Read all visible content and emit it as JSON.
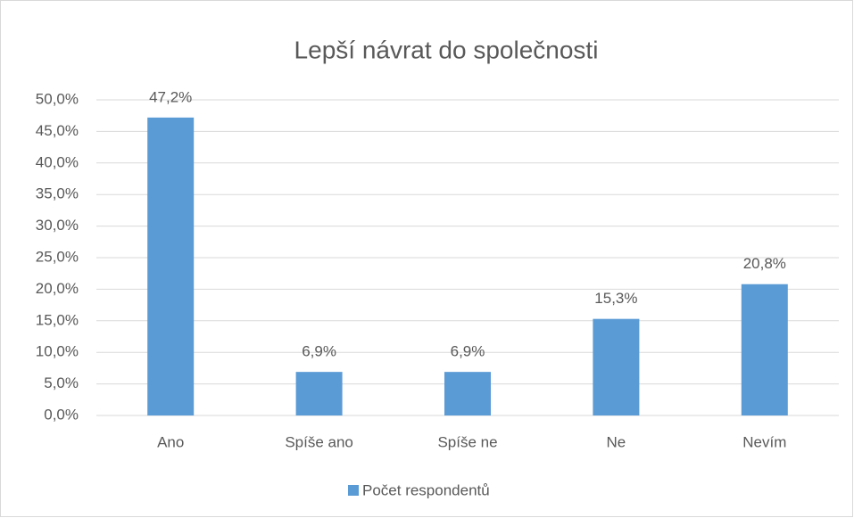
{
  "chart_data": {
    "type": "bar",
    "title": "Lepší návrat do společnosti",
    "categories": [
      "Ano",
      "Spíše ano",
      "Spíše ne",
      "Ne",
      "Nevím"
    ],
    "series": [
      {
        "name": "Počet respondentů",
        "color": "#5b9bd5",
        "values": [
          47.2,
          6.9,
          6.9,
          15.3,
          20.8
        ],
        "value_labels": [
          "47,2%",
          "6,9%",
          "6,9%",
          "15,3%",
          "20,8%"
        ]
      }
    ],
    "ylim": [
      0,
      50
    ],
    "yticks": [
      {
        "value": 0,
        "label": "0,0%"
      },
      {
        "value": 5,
        "label": "5,0%"
      },
      {
        "value": 10,
        "label": "10,0%"
      },
      {
        "value": 15,
        "label": "15,0%"
      },
      {
        "value": 20,
        "label": "20,0%"
      },
      {
        "value": 25,
        "label": "25,0%"
      },
      {
        "value": 30,
        "label": "30,0%"
      },
      {
        "value": 35,
        "label": "35,0%"
      },
      {
        "value": 40,
        "label": "40,0%"
      },
      {
        "value": 45,
        "label": "45,0%"
      },
      {
        "value": 50,
        "label": "50,0%"
      }
    ],
    "grid": true,
    "legend": "bottom"
  }
}
